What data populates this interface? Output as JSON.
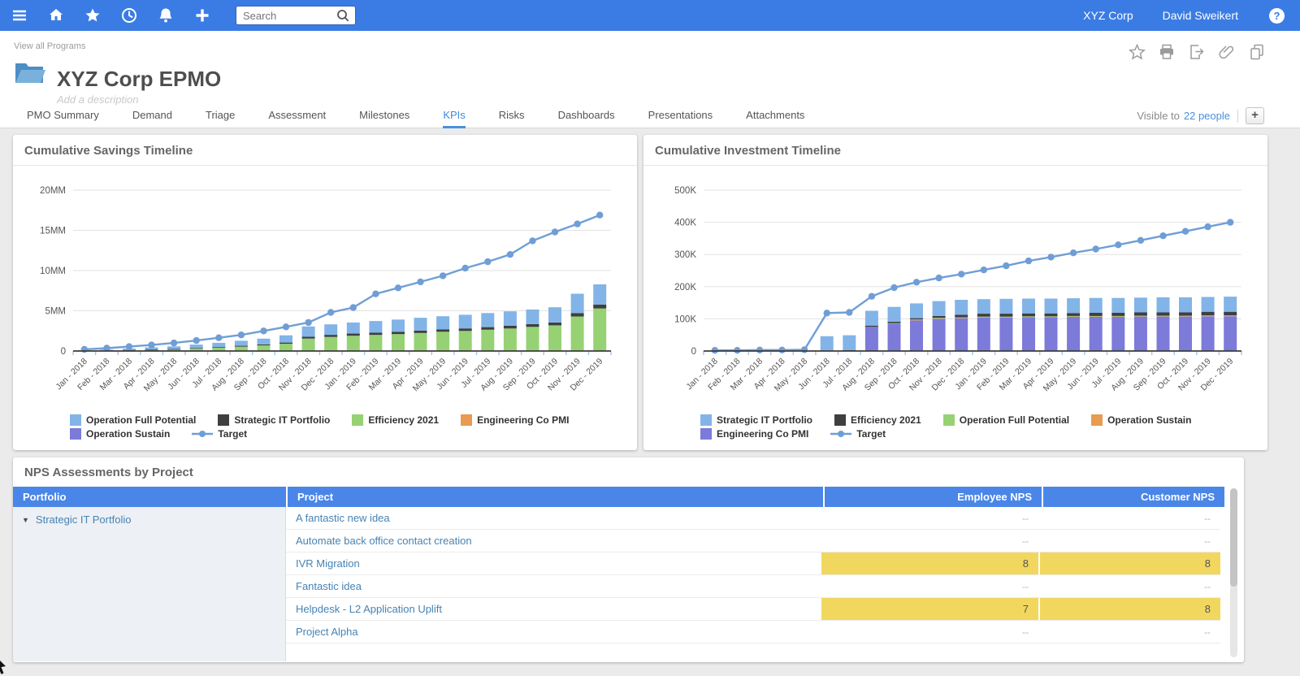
{
  "navbar": {
    "search_placeholder": "Search",
    "org": "XYZ Corp",
    "user": "David Sweikert"
  },
  "header": {
    "breadcrumb": "View all Programs",
    "title": "XYZ Corp EPMO",
    "description_placeholder": "Add a description"
  },
  "tabs": {
    "items": [
      "PMO Summary",
      "Demand",
      "Triage",
      "Assessment",
      "Milestones",
      "KPIs",
      "Risks",
      "Dashboards",
      "Presentations",
      "Attachments"
    ],
    "active": "KPIs",
    "visibility_label": "Visible to",
    "visibility_link": "22 people",
    "add_button": "+"
  },
  "chart_data": [
    {
      "type": "bar",
      "subtype": "stacked-bars-with-target-line",
      "title": "Cumulative Savings Timeline",
      "x": [
        "Jan - 2018",
        "Feb - 2018",
        "Mar - 2018",
        "Apr - 2018",
        "May - 2018",
        "Jun - 2018",
        "Jul - 2018",
        "Aug - 2018",
        "Sep - 2018",
        "Oct - 2018",
        "Nov - 2018",
        "Dec - 2018",
        "Jan - 2019",
        "Feb - 2019",
        "Mar - 2019",
        "Apr - 2019",
        "May - 2019",
        "Jun - 2019",
        "Jul - 2019",
        "Aug - 2019",
        "Sep - 2019",
        "Oct - 2019",
        "Nov - 2019",
        "Dec - 2019"
      ],
      "y_unit": "MM",
      "ylim": [
        0,
        20
      ],
      "y_ticks": {
        "values": [
          0,
          5,
          10,
          15,
          20
        ],
        "labels": [
          "0",
          "5MM",
          "10MM",
          "15MM",
          "20MM"
        ]
      },
      "series": [
        {
          "name": "Operation Sustain",
          "color": "#7c7bd9",
          "values": [
            0,
            0,
            0,
            0,
            0,
            0,
            0,
            0,
            0,
            0,
            0,
            0,
            0,
            0,
            0,
            0,
            0,
            0,
            0,
            0,
            0,
            0,
            0,
            0
          ]
        },
        {
          "name": "Engineering Co PMI",
          "color": "#e89b51",
          "values": [
            0,
            0,
            0,
            0,
            0,
            0,
            0,
            0,
            0,
            0,
            0,
            0,
            0,
            0,
            0,
            0,
            0,
            0,
            0,
            0,
            0,
            0,
            0,
            0
          ]
        },
        {
          "name": "Efficiency 2021",
          "color": "#96d273",
          "values": [
            0.03,
            0.05,
            0.1,
            0.15,
            0.2,
            0.3,
            0.42,
            0.55,
            0.7,
            0.9,
            1.55,
            1.75,
            1.9,
            2.0,
            2.1,
            2.25,
            2.4,
            2.5,
            2.65,
            2.8,
            3.0,
            3.2,
            4.3,
            5.3
          ]
        },
        {
          "name": "Strategic IT Portfolio",
          "color": "#3f3f3f",
          "values": [
            0.01,
            0.02,
            0.03,
            0.04,
            0.05,
            0.07,
            0.08,
            0.1,
            0.12,
            0.15,
            0.22,
            0.26,
            0.27,
            0.28,
            0.29,
            0.3,
            0.3,
            0.31,
            0.32,
            0.33,
            0.34,
            0.35,
            0.42,
            0.48
          ]
        },
        {
          "name": "Operation Full Potential",
          "color": "#82b4e8",
          "values": [
            0.06,
            0.1,
            0.17,
            0.26,
            0.33,
            0.43,
            0.52,
            0.62,
            0.72,
            0.9,
            1.28,
            1.3,
            1.38,
            1.45,
            1.52,
            1.58,
            1.62,
            1.7,
            1.75,
            1.8,
            1.82,
            1.88,
            2.4,
            2.5
          ]
        }
      ],
      "target": {
        "name": "Target",
        "color": "#6f9ed6",
        "values": [
          0.2,
          0.35,
          0.55,
          0.75,
          1.0,
          1.3,
          1.65,
          2.0,
          2.5,
          3.0,
          3.55,
          4.8,
          5.4,
          7.1,
          7.85,
          8.6,
          9.35,
          10.3,
          11.1,
          12.0,
          13.7,
          14.8,
          15.8,
          16.9
        ]
      },
      "legend_rows": [
        [
          {
            "label": "Operation Full Potential",
            "color": "#82b4e8",
            "type": "box"
          },
          {
            "label": "Strategic IT Portfolio",
            "color": "#3f3f3f",
            "type": "box"
          },
          {
            "label": "Efficiency 2021",
            "color": "#96d273",
            "type": "box"
          },
          {
            "label": "Engineering Co PMI",
            "color": "#e89b51",
            "type": "box"
          }
        ],
        [
          {
            "label": "Operation Sustain",
            "color": "#7c7bd9",
            "type": "box"
          },
          {
            "label": "Target",
            "color": "#6f9ed6",
            "type": "line"
          }
        ]
      ]
    },
    {
      "type": "bar",
      "subtype": "stacked-bars-with-target-line",
      "title": "Cumulative Investment Timeline",
      "x": [
        "Jan - 2018",
        "Feb - 2018",
        "Mar - 2018",
        "Apr - 2018",
        "May - 2018",
        "Jun - 2018",
        "Jul - 2018",
        "Aug - 2018",
        "Sep - 2018",
        "Oct - 2018",
        "Nov - 2018",
        "Dec - 2018",
        "Jan - 2019",
        "Feb - 2019",
        "Mar - 2019",
        "Apr - 2019",
        "May - 2019",
        "Jun - 2019",
        "Jul - 2019",
        "Aug - 2019",
        "Sep - 2019",
        "Oct - 2019",
        "Nov - 2019",
        "Dec - 2019"
      ],
      "y_unit": "K",
      "ylim": [
        0,
        500
      ],
      "y_ticks": {
        "values": [
          0,
          100,
          200,
          300,
          400,
          500
        ],
        "labels": [
          "0",
          "100K",
          "200K",
          "300K",
          "400K",
          "500K"
        ]
      },
      "series": [
        {
          "name": "Engineering Co PMI",
          "color": "#7c7bd9",
          "values": [
            0,
            0,
            0,
            0,
            0,
            0,
            0,
            75,
            86,
            96,
            100,
            102,
            104,
            104,
            105,
            105,
            106,
            106,
            106,
            107,
            107,
            107,
            108,
            108
          ]
        },
        {
          "name": "Operation Sustain",
          "color": "#e89b51",
          "values": [
            0,
            0,
            0,
            0,
            0,
            0,
            0,
            0,
            0,
            1,
            2,
            2,
            2,
            2,
            2,
            2,
            2,
            2,
            2,
            2,
            2,
            2,
            2,
            2
          ]
        },
        {
          "name": "Operation Full Potential",
          "color": "#96d273",
          "values": [
            0,
            0,
            0,
            0,
            0,
            0,
            0,
            0,
            1,
            1,
            1,
            1,
            1,
            1,
            1,
            1,
            1,
            1,
            1,
            1,
            1,
            1,
            1,
            1
          ]
        },
        {
          "name": "Efficiency 2021",
          "color": "#3f3f3f",
          "values": [
            0,
            0,
            0,
            0,
            0,
            0,
            3,
            4,
            4,
            4,
            6,
            8,
            9,
            9,
            9,
            9,
            9,
            10,
            10,
            10,
            10,
            10,
            11,
            11
          ]
        },
        {
          "name": "Strategic IT Portfolio",
          "color": "#82b4e8",
          "values": [
            0,
            0,
            0,
            0,
            0,
            46,
            46,
            46,
            46,
            46,
            46,
            46,
            45,
            46,
            46,
            46,
            46,
            46,
            46,
            46,
            47,
            47,
            46,
            47
          ]
        }
      ],
      "target": {
        "name": "Target",
        "color": "#6f9ed6",
        "values": [
          2,
          2,
          3,
          3,
          4,
          118,
          120,
          170,
          197,
          214,
          227,
          239,
          252,
          265,
          280,
          292,
          305,
          317,
          330,
          344,
          358,
          372,
          386,
          400
        ]
      },
      "legend_rows": [
        [
          {
            "label": "Strategic IT Portfolio",
            "color": "#82b4e8",
            "type": "box"
          },
          {
            "label": "Efficiency 2021",
            "color": "#3f3f3f",
            "type": "box"
          },
          {
            "label": "Operation Full Potential",
            "color": "#96d273",
            "type": "box"
          },
          {
            "label": "Operation Sustain",
            "color": "#e89b51",
            "type": "box"
          }
        ],
        [
          {
            "label": "Engineering Co PMI",
            "color": "#7c7bd9",
            "type": "line-box"
          },
          {
            "label": "Target",
            "color": "#6f9ed6",
            "type": "line"
          }
        ]
      ]
    }
  ],
  "nps_table": {
    "title": "NPS Assessments by Project",
    "columns": [
      "Portfolio",
      "Project",
      "Employee NPS",
      "Customer NPS"
    ],
    "portfolio_group": {
      "label": "Strategic IT Portfolio",
      "expanded": true
    },
    "empty_value": "--",
    "rows": [
      {
        "project": "A fantastic new idea",
        "employee_nps": "--",
        "customer_nps": "--",
        "highlight": false
      },
      {
        "project": "Automate back office contact creation",
        "employee_nps": "--",
        "customer_nps": "--",
        "highlight": false
      },
      {
        "project": "IVR Migration",
        "employee_nps": "8",
        "customer_nps": "8",
        "highlight": true
      },
      {
        "project": "Fantastic idea",
        "employee_nps": "--",
        "customer_nps": "--",
        "highlight": false
      },
      {
        "project": "Helpdesk - L2 Application Uplift",
        "employee_nps": "7",
        "customer_nps": "8",
        "highlight": true
      },
      {
        "project": "Project Alpha",
        "employee_nps": "--",
        "customer_nps": "--",
        "highlight": false
      }
    ]
  },
  "colors": {
    "navbar_blue": "#3b7ce4",
    "table_header_blue": "#4a86e8",
    "active_tab_blue": "#3f8ade",
    "link_blue": "#4683b4",
    "nps_highlight_yellow": "#f2d75f",
    "bar_light_blue": "#82b4e8",
    "bar_green": "#96d273",
    "bar_dark": "#3f3f3f",
    "bar_orange": "#e89b51",
    "bar_purple": "#7c7bd9",
    "target_line_blue": "#6f9ed6"
  }
}
